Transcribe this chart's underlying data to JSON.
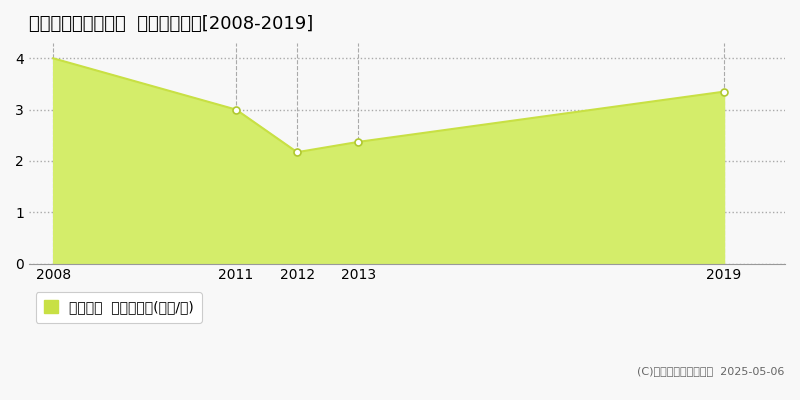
{
  "title": "知多郡南知多町豊丘  土地価格推移[2008-2019]",
  "years": [
    2008,
    2011,
    2012,
    2013,
    2019
  ],
  "values": [
    4.0,
    3.0,
    2.17,
    2.37,
    3.35
  ],
  "line_color": "#c8e044",
  "fill_color": "#d4ed6a",
  "marker_color": "#ffffff",
  "marker_edge_color": "#b0c830",
  "background_color": "#f8f8f8",
  "plot_bg_color": "#f8f8f8",
  "ylim": [
    0,
    4.3
  ],
  "yticks": [
    0,
    1,
    2,
    3,
    4
  ],
  "xlim_min": 2007.6,
  "xlim_max": 2020.0,
  "grid_color": "#aaaaaa",
  "legend_label": "土地価格  平均坪単価(万円/坪)",
  "copyright_text": "(C)土地価格ドットコム  2025-05-06",
  "title_fontsize": 13,
  "axis_fontsize": 10,
  "legend_fontsize": 10
}
